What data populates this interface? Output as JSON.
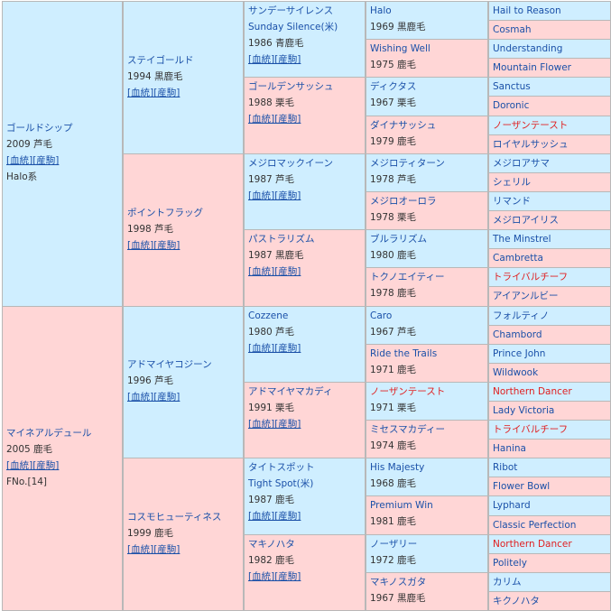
{
  "g1": [
    {
      "name": "ゴールドシップ",
      "info": "2009 芦毛",
      "link": "[血統][産駒]",
      "extra": "Halo系",
      "sex": "m"
    },
    {
      "name": "マイネアルデュール",
      "info": "2005 鹿毛",
      "link": "[血統][産駒]",
      "extra": "FNo.[14]",
      "sex": "f"
    }
  ],
  "g2": [
    {
      "name": "ステイゴールド",
      "info": "1994 黒鹿毛",
      "link": "[血統][産駒]",
      "sex": "m"
    },
    {
      "name": "ポイントフラッグ",
      "info": "1998 芦毛",
      "link": "[血統][産駒]",
      "sex": "f"
    },
    {
      "name": "アドマイヤコジーン",
      "info": "1996 芦毛",
      "link": "[血統][産駒]",
      "sex": "m"
    },
    {
      "name": "コスモヒューティネス",
      "info": "1999 鹿毛",
      "link": "[血統][産駒]",
      "sex": "f"
    }
  ],
  "g3": [
    {
      "name": "サンデーサイレンス",
      "name2": "Sunday Silence(米)",
      "info": "1986 青鹿毛",
      "link": "[血統][産駒]",
      "sex": "m"
    },
    {
      "name": "ゴールデンサッシュ",
      "info": "1988 栗毛",
      "link": "[血統][産駒]",
      "sex": "f"
    },
    {
      "name": "メジロマックイーン",
      "info": "1987 芦毛",
      "link": "[血統][産駒]",
      "sex": "m"
    },
    {
      "name": "パストラリズム",
      "info": "1987 黒鹿毛",
      "link": "[血統][産駒]",
      "sex": "f"
    },
    {
      "name": "Cozzene",
      "info": "1980 芦毛",
      "link": "[血統][産駒]",
      "sex": "m"
    },
    {
      "name": "アドマイヤマカディ",
      "info": "1991 栗毛",
      "link": "[血統][産駒]",
      "sex": "f"
    },
    {
      "name": "タイトスポット",
      "name2": "Tight Spot(米)",
      "info": "1987 鹿毛",
      "link": "[血統][産駒]",
      "sex": "m"
    },
    {
      "name": "マキノハタ",
      "info": "1982 鹿毛",
      "link": "[血統][産駒]",
      "sex": "f"
    }
  ],
  "g4": [
    {
      "name": "Halo",
      "info": "1969 黒鹿毛",
      "sex": "m"
    },
    {
      "name": "Wishing Well",
      "info": "1975 鹿毛",
      "sex": "f"
    },
    {
      "name": "ディクタス",
      "info": "1967 栗毛",
      "sex": "m"
    },
    {
      "name": "ダイナサッシュ",
      "info": "1979 鹿毛",
      "sex": "f"
    },
    {
      "name": "メジロティターン",
      "info": "1978 芦毛",
      "sex": "m"
    },
    {
      "name": "メジロオーロラ",
      "info": "1978 栗毛",
      "sex": "f"
    },
    {
      "name": "ブルラリズム",
      "info": "1980 鹿毛",
      "sex": "m"
    },
    {
      "name": "トクノエイティー",
      "info": "1978 鹿毛",
      "sex": "f"
    },
    {
      "name": "Caro",
      "info": "1967 芦毛",
      "sex": "m"
    },
    {
      "name": "Ride the Trails",
      "info": "1971 鹿毛",
      "sex": "f"
    },
    {
      "name": "ノーザンテースト",
      "info": "1971 栗毛",
      "sex": "m",
      "red": true
    },
    {
      "name": "ミセスマカディー",
      "info": "1974 鹿毛",
      "sex": "f"
    },
    {
      "name": "His Majesty",
      "info": "1968 鹿毛",
      "sex": "m"
    },
    {
      "name": "Premium Win",
      "info": "1981 鹿毛",
      "sex": "f"
    },
    {
      "name": "ノーザリー",
      "info": "1972 鹿毛",
      "sex": "m"
    },
    {
      "name": "マキノスガタ",
      "info": "1967 黒鹿毛",
      "sex": "f"
    }
  ],
  "g5": [
    {
      "name": "Hail to Reason",
      "sex": "m"
    },
    {
      "name": "Cosmah",
      "sex": "f"
    },
    {
      "name": "Understanding",
      "sex": "m"
    },
    {
      "name": "Mountain Flower",
      "sex": "f"
    },
    {
      "name": "Sanctus",
      "sex": "m"
    },
    {
      "name": "Doronic",
      "sex": "f"
    },
    {
      "name": "ノーザンテースト",
      "sex": "m",
      "red": true
    },
    {
      "name": "ロイヤルサッシュ",
      "sex": "f"
    },
    {
      "name": "メジロアサマ",
      "sex": "m"
    },
    {
      "name": "シェリル",
      "sex": "f"
    },
    {
      "name": "リマンド",
      "sex": "m"
    },
    {
      "name": "メジロアイリス",
      "sex": "f"
    },
    {
      "name": "The Minstrel",
      "sex": "m"
    },
    {
      "name": "Cambretta",
      "sex": "f"
    },
    {
      "name": "トライバルチーフ",
      "sex": "m",
      "red": true
    },
    {
      "name": "アイアンルビー",
      "sex": "f"
    },
    {
      "name": "フォルティノ",
      "sex": "m"
    },
    {
      "name": "Chambord",
      "sex": "f"
    },
    {
      "name": "Prince John",
      "sex": "m"
    },
    {
      "name": "Wildwook",
      "sex": "f"
    },
    {
      "name": "Northern Dancer",
      "sex": "m",
      "red": true
    },
    {
      "name": "Lady Victoria",
      "sex": "f"
    },
    {
      "name": "トライバルチーフ",
      "sex": "m",
      "red": true
    },
    {
      "name": "Hanina",
      "sex": "f"
    },
    {
      "name": "Ribot",
      "sex": "m"
    },
    {
      "name": "Flower Bowl",
      "sex": "f"
    },
    {
      "name": "Lyphard",
      "sex": "m"
    },
    {
      "name": "Classic Perfection",
      "sex": "f"
    },
    {
      "name": "Northern Dancer",
      "sex": "m",
      "red": true
    },
    {
      "name": "Politely",
      "sex": "f"
    },
    {
      "name": "カリム",
      "sex": "m"
    },
    {
      "name": "キクノハタ",
      "sex": "f"
    }
  ],
  "colors": {
    "sire_bg": "#cfeeff",
    "dam_bg": "#ffd6d6",
    "link": "#1a50a8",
    "highlight": "#e02020"
  }
}
